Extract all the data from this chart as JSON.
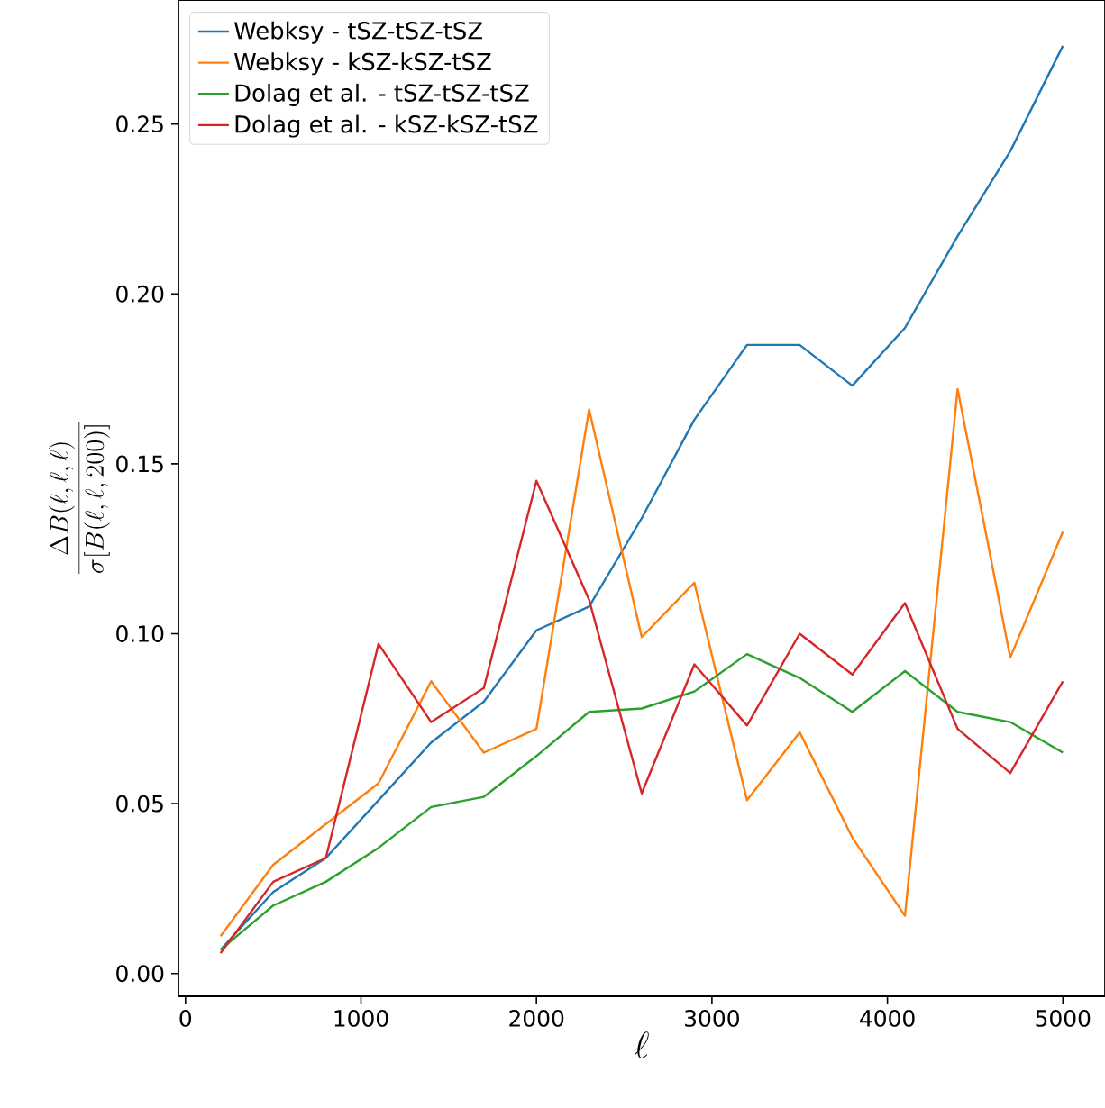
{
  "chart_data": {
    "type": "line",
    "xlabel": "\\ell",
    "ylabel": "\\frac{\\Delta B(\\ell,\\ell,\\ell)}{\\sigma[B(\\ell,\\ell,200)]}",
    "x": [
      200,
      500,
      800,
      1100,
      1400,
      1700,
      2000,
      2300,
      2600,
      2900,
      3200,
      3500,
      3800,
      4100,
      4400,
      4700,
      5000
    ],
    "series": [
      {
        "name": "Webksy - tSZ-tSZ-tSZ",
        "color": "#1f77b4",
        "values": [
          0.007,
          0.024,
          0.034,
          0.051,
          0.068,
          0.08,
          0.101,
          0.108,
          0.134,
          0.163,
          0.185,
          0.185,
          0.173,
          0.19,
          0.217,
          0.242,
          0.273
        ]
      },
      {
        "name": "Webksy - kSZ-kSZ-tSZ",
        "color": "#ff7f0e",
        "values": [
          0.011,
          0.032,
          0.044,
          0.056,
          0.086,
          0.065,
          0.072,
          0.166,
          0.099,
          0.115,
          0.051,
          0.071,
          0.04,
          0.017,
          0.172,
          0.093,
          0.13
        ]
      },
      {
        "name": "Dolag et al. - tSZ-tSZ-tSZ",
        "color": "#2ca02c",
        "values": [
          0.007,
          0.02,
          0.027,
          0.037,
          0.049,
          0.052,
          0.064,
          0.077,
          0.078,
          0.083,
          0.094,
          0.087,
          0.077,
          0.089,
          0.077,
          0.074,
          0.065
        ]
      },
      {
        "name": "Dolag et al. - kSZ-kSZ-tSZ",
        "color": "#d62728",
        "values": [
          0.006,
          0.027,
          0.034,
          0.097,
          0.074,
          0.084,
          0.145,
          0.11,
          0.053,
          0.091,
          0.073,
          0.1,
          0.088,
          0.109,
          0.072,
          0.059,
          0.086
        ]
      }
    ],
    "xlim": [
      -40,
      5240
    ],
    "ylim": [
      -0.0067,
      0.2865
    ],
    "xticks": [
      0,
      1000,
      2000,
      3000,
      4000,
      5000
    ],
    "yticks": [
      {
        "value": 0,
        "label": "0.00"
      },
      {
        "value": 0.05,
        "label": "0.05"
      },
      {
        "value": 0.1,
        "label": "0.10"
      },
      {
        "value": 0.15,
        "label": "0.15"
      },
      {
        "value": 0.2,
        "label": "0.20"
      },
      {
        "value": 0.25,
        "label": "0.25"
      }
    ],
    "legend": "top left",
    "grid": false,
    "marker": "none",
    "line_style": "solid"
  }
}
